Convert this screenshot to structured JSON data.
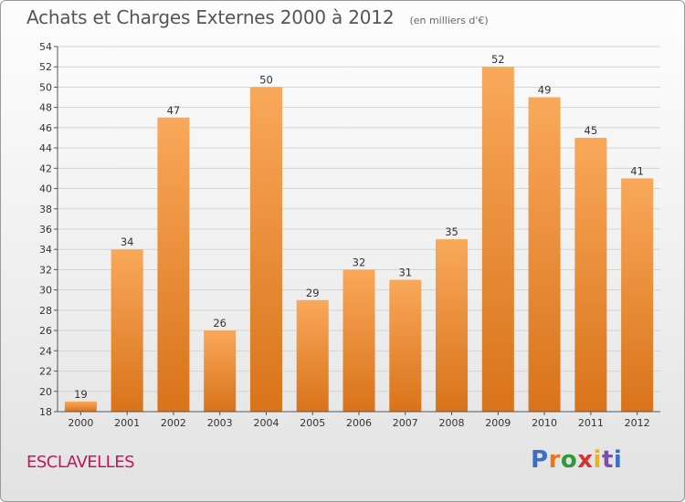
{
  "header": {
    "title": "Achats et Charges Externes 2000 à 2012",
    "unit": "(en milliers d'€)"
  },
  "footer": {
    "commune": "ESCLAVELLES",
    "logo": "Proxiti",
    "logo_colors": [
      "#3a6fc4",
      "#e8771c",
      "#2e9a3c",
      "#d93030",
      "#e8b31c",
      "#7a4fb0",
      "#3a6fc4"
    ]
  },
  "colors": {
    "bar_light": "#f9a85a",
    "bar_dark": "#d9731a",
    "grid": "#d4d4d4",
    "axis": "#555555"
  },
  "chart_data": {
    "type": "bar",
    "title": "Achats et Charges Externes 2000 à 2012",
    "subtitle": "(en milliers d'€)",
    "xlabel": "",
    "ylabel": "",
    "categories": [
      "2000",
      "2001",
      "2002",
      "2003",
      "2004",
      "2005",
      "2006",
      "2007",
      "2008",
      "2009",
      "2010",
      "2011",
      "2012"
    ],
    "values": [
      19,
      34,
      47,
      26,
      50,
      29,
      32,
      31,
      35,
      52,
      49,
      45,
      41
    ],
    "ylim": [
      18,
      54
    ],
    "yticks": [
      18,
      20,
      22,
      24,
      26,
      28,
      30,
      32,
      34,
      36,
      38,
      40,
      42,
      44,
      46,
      48,
      50,
      52,
      54
    ],
    "grid": true,
    "legend": "none"
  }
}
